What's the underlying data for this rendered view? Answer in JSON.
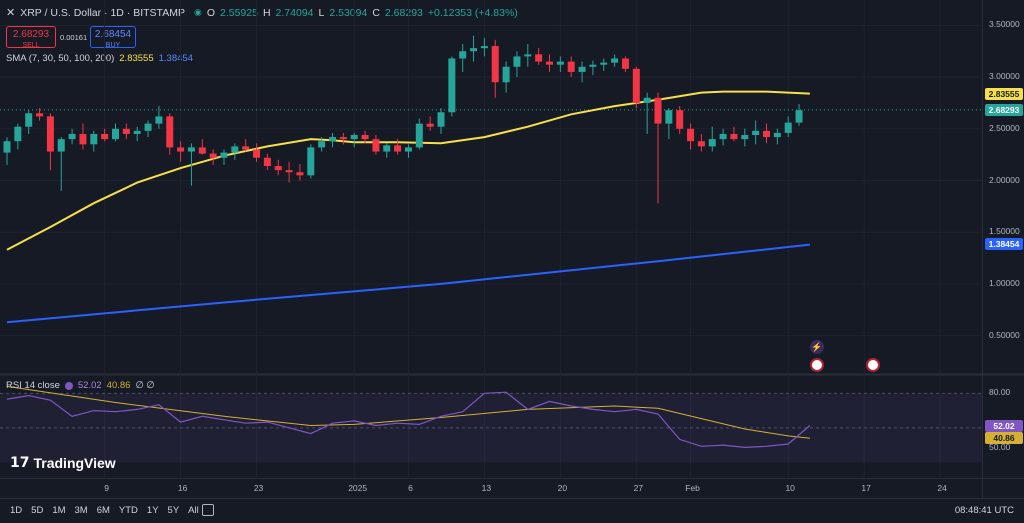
{
  "header": {
    "symbol": "XRP / U.S. Dollar · 1D · BITSTAMP",
    "ohlc": {
      "o_label": "O",
      "o": "2.55925",
      "h_label": "H",
      "h": "2.74094",
      "l_label": "L",
      "l": "2.53094",
      "c_label": "C",
      "c": "2.68293",
      "change": "+0.12353 (+4.83%)"
    },
    "sell": {
      "price": "2.68293",
      "label": "SELL"
    },
    "spread": "0.00161",
    "buy": {
      "price": "2.68454",
      "label": "BUY"
    },
    "sma": {
      "label": "SMA (7, 30, 50, 100, 200)",
      "v1": "2.83555",
      "v2": "1.38454"
    }
  },
  "rsi": {
    "label": "RSI 14 close",
    "v1": "52.02",
    "v2": "40.86",
    "extra": "∅ ∅"
  },
  "chart_data": {
    "type": "candlestick",
    "price_ticks": [
      3.5,
      3.0,
      2.5,
      2.0,
      1.5,
      1.0,
      0.5
    ],
    "price_tick_labels": [
      "3.50000",
      "3.00000",
      "2.50000",
      "2.00000",
      "1.50000",
      "1.00000",
      "0.50000"
    ],
    "price_range": [
      0.0,
      3.8
    ],
    "x_ticks": [
      {
        "label": "9",
        "day": 9
      },
      {
        "label": "16",
        "day": 16
      },
      {
        "label": "23",
        "day": 23
      },
      {
        "label": "2025",
        "day": 32
      },
      {
        "label": "6",
        "day": 37
      },
      {
        "label": "13",
        "day": 44
      },
      {
        "label": "20",
        "day": 51
      },
      {
        "label": "27",
        "day": 58
      },
      {
        "label": "Feb",
        "day": 63
      },
      {
        "label": "10",
        "day": 72
      },
      {
        "label": "17",
        "day": 79
      },
      {
        "label": "24",
        "day": 86
      }
    ],
    "candles": [
      [
        2.27,
        2.42,
        2.15,
        2.38
      ],
      [
        2.38,
        2.55,
        2.3,
        2.52
      ],
      [
        2.52,
        2.68,
        2.45,
        2.65
      ],
      [
        2.65,
        2.7,
        2.58,
        2.62
      ],
      [
        2.62,
        2.65,
        2.1,
        2.28
      ],
      [
        2.28,
        2.42,
        1.9,
        2.4
      ],
      [
        2.4,
        2.5,
        2.35,
        2.45
      ],
      [
        2.45,
        2.55,
        2.3,
        2.35
      ],
      [
        2.35,
        2.48,
        2.28,
        2.45
      ],
      [
        2.45,
        2.5,
        2.38,
        2.4
      ],
      [
        2.4,
        2.55,
        2.38,
        2.5
      ],
      [
        2.5,
        2.55,
        2.4,
        2.45
      ],
      [
        2.45,
        2.52,
        2.38,
        2.48
      ],
      [
        2.48,
        2.58,
        2.42,
        2.55
      ],
      [
        2.55,
        2.72,
        2.5,
        2.62
      ],
      [
        2.62,
        2.65,
        2.25,
        2.32
      ],
      [
        2.32,
        2.38,
        2.18,
        2.28
      ],
      [
        2.28,
        2.36,
        1.95,
        2.32
      ],
      [
        2.32,
        2.4,
        2.25,
        2.26
      ],
      [
        2.26,
        2.3,
        2.15,
        2.22
      ],
      [
        2.22,
        2.3,
        2.15,
        2.27
      ],
      [
        2.27,
        2.36,
        2.2,
        2.33
      ],
      [
        2.33,
        2.4,
        2.28,
        2.3
      ],
      [
        2.3,
        2.36,
        2.18,
        2.22
      ],
      [
        2.22,
        2.26,
        2.1,
        2.14
      ],
      [
        2.14,
        2.2,
        2.05,
        2.1
      ],
      [
        2.1,
        2.18,
        1.98,
        2.08
      ],
      [
        2.08,
        2.16,
        2.0,
        2.05
      ],
      [
        2.05,
        2.35,
        2.02,
        2.32
      ],
      [
        2.32,
        2.42,
        2.28,
        2.38
      ],
      [
        2.38,
        2.46,
        2.32,
        2.42
      ],
      [
        2.42,
        2.46,
        2.35,
        2.4
      ],
      [
        2.4,
        2.46,
        2.32,
        2.44
      ],
      [
        2.44,
        2.48,
        2.36,
        2.4
      ],
      [
        2.4,
        2.44,
        2.25,
        2.28
      ],
      [
        2.28,
        2.36,
        2.22,
        2.34
      ],
      [
        2.34,
        2.4,
        2.25,
        2.28
      ],
      [
        2.28,
        2.35,
        2.22,
        2.32
      ],
      [
        2.32,
        2.6,
        2.3,
        2.55
      ],
      [
        2.55,
        2.62,
        2.48,
        2.52
      ],
      [
        2.52,
        2.7,
        2.45,
        2.66
      ],
      [
        2.66,
        3.2,
        2.62,
        3.18
      ],
      [
        3.18,
        3.32,
        3.05,
        3.25
      ],
      [
        3.25,
        3.4,
        3.15,
        3.28
      ],
      [
        3.28,
        3.38,
        3.2,
        3.3
      ],
      [
        3.3,
        3.36,
        2.8,
        2.95
      ],
      [
        2.95,
        3.15,
        2.85,
        3.1
      ],
      [
        3.1,
        3.25,
        3.0,
        3.2
      ],
      [
        3.2,
        3.32,
        3.1,
        3.22
      ],
      [
        3.22,
        3.28,
        3.12,
        3.15
      ],
      [
        3.15,
        3.22,
        3.05,
        3.12
      ],
      [
        3.12,
        3.2,
        3.05,
        3.15
      ],
      [
        3.15,
        3.2,
        3.0,
        3.05
      ],
      [
        3.05,
        3.15,
        2.95,
        3.1
      ],
      [
        3.1,
        3.16,
        3.02,
        3.12
      ],
      [
        3.12,
        3.18,
        3.06,
        3.14
      ],
      [
        3.14,
        3.22,
        3.1,
        3.18
      ],
      [
        3.18,
        3.2,
        3.05,
        3.08
      ],
      [
        3.08,
        3.1,
        2.7,
        2.75
      ],
      [
        2.75,
        2.85,
        2.45,
        2.8
      ],
      [
        2.8,
        2.85,
        1.78,
        2.55
      ],
      [
        2.55,
        2.7,
        2.4,
        2.68
      ],
      [
        2.68,
        2.72,
        2.45,
        2.5
      ],
      [
        2.5,
        2.55,
        2.3,
        2.38
      ],
      [
        2.38,
        2.45,
        2.28,
        2.33
      ],
      [
        2.33,
        2.52,
        2.28,
        2.4
      ],
      [
        2.4,
        2.5,
        2.34,
        2.45
      ],
      [
        2.45,
        2.52,
        2.38,
        2.4
      ],
      [
        2.4,
        2.5,
        2.33,
        2.44
      ],
      [
        2.44,
        2.58,
        2.35,
        2.48
      ],
      [
        2.48,
        2.55,
        2.36,
        2.42
      ],
      [
        2.42,
        2.5,
        2.35,
        2.46
      ],
      [
        2.46,
        2.62,
        2.42,
        2.56
      ],
      [
        2.56,
        2.74,
        2.53,
        2.68
      ]
    ],
    "sma_fast": [
      [
        0,
        1.33
      ],
      [
        4,
        1.55
      ],
      [
        8,
        1.78
      ],
      [
        12,
        1.98
      ],
      [
        16,
        2.12
      ],
      [
        20,
        2.24
      ],
      [
        24,
        2.33
      ],
      [
        28,
        2.4
      ],
      [
        30,
        2.39
      ],
      [
        32,
        2.37
      ],
      [
        36,
        2.37
      ],
      [
        40,
        2.36
      ],
      [
        44,
        2.42
      ],
      [
        48,
        2.52
      ],
      [
        52,
        2.64
      ],
      [
        56,
        2.72
      ],
      [
        60,
        2.78
      ],
      [
        64,
        2.85
      ],
      [
        66,
        2.86
      ],
      [
        70,
        2.86
      ],
      [
        74,
        2.84
      ]
    ],
    "sma_slow": [
      [
        0,
        0.63
      ],
      [
        20,
        0.82
      ],
      [
        40,
        1.0
      ],
      [
        60,
        1.22
      ],
      [
        74,
        1.38
      ]
    ],
    "rsi_ticks": [
      80,
      50
    ],
    "rsi_line": [
      [
        0,
        75
      ],
      [
        2,
        78
      ],
      [
        4,
        74
      ],
      [
        6,
        60
      ],
      [
        8,
        65
      ],
      [
        10,
        64
      ],
      [
        12,
        66
      ],
      [
        14,
        70
      ],
      [
        16,
        55
      ],
      [
        18,
        60
      ],
      [
        20,
        57
      ],
      [
        22,
        54
      ],
      [
        24,
        55
      ],
      [
        26,
        50
      ],
      [
        28,
        45
      ],
      [
        30,
        54
      ],
      [
        32,
        56
      ],
      [
        34,
        52
      ],
      [
        36,
        54
      ],
      [
        38,
        53
      ],
      [
        40,
        60
      ],
      [
        42,
        64
      ],
      [
        44,
        80
      ],
      [
        46,
        81
      ],
      [
        48,
        66
      ],
      [
        50,
        73
      ],
      [
        52,
        69
      ],
      [
        54,
        66
      ],
      [
        56,
        64
      ],
      [
        58,
        66
      ],
      [
        60,
        62
      ],
      [
        62,
        40
      ],
      [
        64,
        34
      ],
      [
        66,
        35
      ],
      [
        68,
        33
      ],
      [
        70,
        34
      ],
      [
        72,
        36
      ],
      [
        74,
        52
      ]
    ],
    "rsi_ma": [
      [
        0,
        86
      ],
      [
        10,
        72
      ],
      [
        20,
        60
      ],
      [
        28,
        52
      ],
      [
        32,
        53
      ],
      [
        40,
        59
      ],
      [
        48,
        66
      ],
      [
        56,
        69
      ],
      [
        60,
        67
      ],
      [
        64,
        58
      ],
      [
        68,
        49
      ],
      [
        72,
        43
      ],
      [
        74,
        41
      ]
    ],
    "current_price": 2.68293
  },
  "tags": {
    "sma_fast": "2.83555",
    "close": "2.68293",
    "sma_slow": "1.38454",
    "rsi": "52.02",
    "rsi_ma": "40.86",
    "rsi_top": "80.00",
    "rsi_mid": "50.00"
  },
  "branding": {
    "logo_text": "TradingView"
  },
  "bottom": {
    "timeframes": [
      "1D",
      "5D",
      "1M",
      "3M",
      "6M",
      "YTD",
      "1Y",
      "5Y",
      "All"
    ],
    "clock": "08:48:41 UTC"
  },
  "colors": {
    "up": "#26a69a",
    "down": "#f23645",
    "sma_fast": "#f7e14a",
    "sma_slow": "#2962ff",
    "rsi": "#7e57c2",
    "rsi_ma": "#d4b134"
  }
}
